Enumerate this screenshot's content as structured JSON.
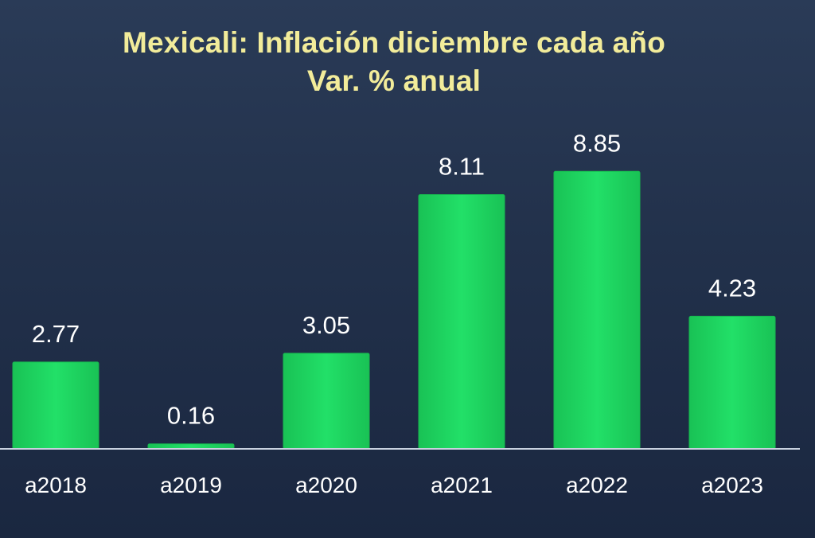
{
  "chart_data": {
    "type": "bar",
    "title": "Mexicali: Inflación diciembre cada año",
    "subtitle": "Var. % anual",
    "categories": [
      "a2018",
      "a2019",
      "a2020",
      "a2021",
      "a2022",
      "a2023"
    ],
    "values": [
      2.77,
      0.16,
      3.05,
      8.11,
      8.85,
      4.23
    ],
    "value_labels": [
      "2.77",
      "0.16",
      "3.05",
      "8.11",
      "8.85",
      "4.23"
    ],
    "xlabel": "",
    "ylabel": "",
    "ylim": [
      0,
      10
    ],
    "grid": false,
    "legend": "none",
    "colors": {
      "bar": "#1ed760",
      "bar_edge": "#17b84f",
      "title": "#f2ec9a",
      "labels": "#ffffff",
      "baseline": "#c9d2e0"
    }
  }
}
